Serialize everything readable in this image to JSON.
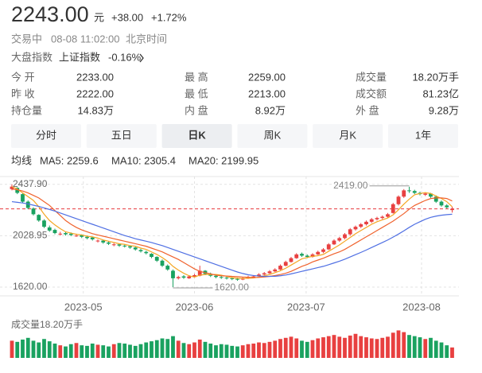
{
  "quote": {
    "price": {
      "value": 2243,
      "label": "2243.00"
    },
    "unit": "元",
    "change": "+38.00",
    "change_pct": "+1.72%",
    "color": "#e8393d"
  },
  "status": {
    "state": "交易中",
    "time": "08-08 11:02:00",
    "zone": "北京时间"
  },
  "index": {
    "label": "大盘指数",
    "name": "上证指数",
    "change": "-0.16%"
  },
  "stats": [
    [
      {
        "label": "今 开",
        "value": "2233.00",
        "color": "#e8393d"
      },
      {
        "label": "最 高",
        "value": "2259.00",
        "color": "#e8393d"
      },
      {
        "label": "成交量",
        "value": "18.20万手"
      }
    ],
    [
      {
        "label": "昨 收",
        "value": "2222.00"
      },
      {
        "label": "最 低",
        "value": "2213.00",
        "color": "#14a04a"
      },
      {
        "label": "成交额",
        "value": "81.23亿"
      }
    ],
    [
      {
        "label": "持仓量",
        "value": "14.83万"
      },
      {
        "label": "内 盘",
        "value": "8.92万"
      },
      {
        "label": "外 盘",
        "value": "9.28万"
      }
    ]
  ],
  "tabs": {
    "items": [
      "分时",
      "五日",
      "日K",
      "周K",
      "月K",
      "1年"
    ],
    "active": 2
  },
  "ma_title": "均线",
  "chart_data": {
    "type": "candlestick",
    "grid": true,
    "up_color": "#e84040",
    "down_color": "#1aa260",
    "ylim": [
      1550,
      2500
    ],
    "yticks": [
      {
        "value": 2437.9,
        "label": "2437.90"
      },
      {
        "value": 2028.95,
        "label": "2028.95"
      },
      {
        "value": 1620,
        "label": "1620.00"
      }
    ],
    "xlim": [
      -2.22,
      83.26
    ],
    "xticks": [
      {
        "value": 13.3,
        "label": "2023-05"
      },
      {
        "value": 34,
        "label": "2023-06"
      },
      {
        "value": 54.8,
        "label": "2023-07"
      },
      {
        "value": 76.3,
        "label": "2023-08"
      }
    ],
    "annotations": [
      {
        "value": 2419,
        "label": "2419.00"
      },
      {
        "value": 1620,
        "label": "1620.00"
      }
    ],
    "candles": [
      [
        2400,
        2437.9,
        2390,
        2420
      ],
      [
        2410,
        2415,
        2360,
        2370
      ],
      [
        2360,
        2365,
        2290,
        2300
      ],
      [
        2300,
        2310,
        2240,
        2250
      ],
      [
        2245,
        2255,
        2190,
        2200
      ],
      [
        2195,
        2200,
        2140,
        2150
      ],
      [
        2150,
        2160,
        2090,
        2100
      ],
      [
        2095,
        2110,
        2060,
        2070
      ],
      [
        2075,
        2085,
        2040,
        2050
      ],
      [
        2040,
        2060,
        2030,
        2045
      ],
      [
        2050,
        2060,
        2030,
        2040
      ],
      [
        2045,
        2055,
        2025,
        2035
      ],
      [
        2030,
        2045,
        2020,
        2030
      ],
      [
        2035,
        2040,
        2010,
        2020
      ],
      [
        2020,
        2030,
        2000,
        2010
      ],
      [
        2015,
        2020,
        1990,
        2000
      ],
      [
        1985,
        2000,
        1975,
        1990
      ],
      [
        1990,
        1995,
        1965,
        1975
      ],
      [
        1975,
        1985,
        1955,
        1965
      ],
      [
        1955,
        1970,
        1945,
        1960
      ],
      [
        1960,
        1965,
        1940,
        1950
      ],
      [
        1950,
        1960,
        1935,
        1945
      ],
      [
        1945,
        1950,
        1925,
        1935
      ],
      [
        1935,
        1940,
        1910,
        1920
      ],
      [
        1915,
        1925,
        1895,
        1905
      ],
      [
        1900,
        1910,
        1880,
        1890
      ],
      [
        1885,
        1890,
        1850,
        1860
      ],
      [
        1860,
        1865,
        1820,
        1830
      ],
      [
        1830,
        1840,
        1780,
        1790
      ],
      [
        1790,
        1800,
        1750,
        1760
      ],
      [
        1750,
        1760,
        1620,
        1690
      ],
      [
        1690,
        1710,
        1680,
        1700
      ],
      [
        1705,
        1715,
        1685,
        1695
      ],
      [
        1690,
        1715,
        1685,
        1705
      ],
      [
        1700,
        1725,
        1695,
        1715
      ],
      [
        1710,
        1790,
        1705,
        1750
      ],
      [
        1750,
        1755,
        1715,
        1725
      ],
      [
        1725,
        1735,
        1700,
        1710
      ],
      [
        1710,
        1720,
        1690,
        1700
      ],
      [
        1700,
        1710,
        1685,
        1695
      ],
      [
        1695,
        1705,
        1680,
        1690
      ],
      [
        1690,
        1700,
        1675,
        1685
      ],
      [
        1685,
        1695,
        1670,
        1680
      ],
      [
        1680,
        1700,
        1675,
        1690
      ],
      [
        1690,
        1710,
        1685,
        1700
      ],
      [
        1700,
        1715,
        1690,
        1705
      ],
      [
        1705,
        1730,
        1700,
        1720
      ],
      [
        1720,
        1740,
        1715,
        1730
      ],
      [
        1730,
        1755,
        1725,
        1745
      ],
      [
        1745,
        1770,
        1740,
        1760
      ],
      [
        1760,
        1800,
        1755,
        1790
      ],
      [
        1790,
        1830,
        1785,
        1820
      ],
      [
        1820,
        1860,
        1815,
        1850
      ],
      [
        1850,
        1890,
        1845,
        1880
      ],
      [
        1885,
        1895,
        1860,
        1870
      ],
      [
        1870,
        1880,
        1850,
        1860
      ],
      [
        1860,
        1890,
        1855,
        1880
      ],
      [
        1880,
        1910,
        1875,
        1900
      ],
      [
        1900,
        1930,
        1890,
        1920
      ],
      [
        1920,
        1970,
        1915,
        1960
      ],
      [
        1960,
        2000,
        1955,
        1990
      ],
      [
        1990,
        2020,
        1980,
        2010
      ],
      [
        2010,
        2050,
        2000,
        2040
      ],
      [
        2040,
        2090,
        2030,
        2080
      ],
      [
        2080,
        2110,
        2070,
        2100
      ],
      [
        2100,
        2130,
        2090,
        2120
      ],
      [
        2120,
        2150,
        2110,
        2140
      ],
      [
        2140,
        2170,
        2130,
        2160
      ],
      [
        2160,
        2180,
        2150,
        2170
      ],
      [
        2170,
        2190,
        2160,
        2180
      ],
      [
        2180,
        2210,
        2170,
        2200
      ],
      [
        2210,
        2290,
        2205,
        2280
      ],
      [
        2280,
        2350,
        2270,
        2340
      ],
      [
        2340,
        2400,
        2330,
        2390
      ],
      [
        2390,
        2419,
        2370,
        2385
      ],
      [
        2385,
        2395,
        2360,
        2370
      ],
      [
        2370,
        2380,
        2350,
        2360
      ],
      [
        2355,
        2375,
        2345,
        2365
      ],
      [
        2365,
        2370,
        2330,
        2340
      ],
      [
        2340,
        2350,
        2290,
        2300
      ],
      [
        2300,
        2310,
        2260,
        2270
      ],
      [
        2270,
        2280,
        2245,
        2255
      ],
      [
        2233,
        2259,
        2213,
        2243
      ]
    ],
    "series": [
      {
        "label": "MA5: 2259.6",
        "color": "#f5a623",
        "values": [
          2420,
          2400,
          2370,
          2340,
          2310,
          2260,
          2200,
          2150,
          2115,
          2085,
          2060,
          2050,
          2040,
          2035,
          2025,
          2020,
          2010,
          1995,
          1985,
          1975,
          1965,
          1960,
          1950,
          1945,
          1930,
          1920,
          1900,
          1880,
          1855,
          1825,
          1785,
          1755,
          1730,
          1710,
          1700,
          1715,
          1720,
          1720,
          1720,
          1715,
          1705,
          1695,
          1690,
          1688,
          1690,
          1692,
          1700,
          1710,
          1720,
          1735,
          1750,
          1770,
          1795,
          1820,
          1845,
          1855,
          1865,
          1870,
          1880,
          1905,
          1930,
          1955,
          1985,
          2015,
          2045,
          2070,
          2095,
          2120,
          2140,
          2155,
          2170,
          2195,
          2235,
          2280,
          2320,
          2355,
          2365,
          2372,
          2365,
          2345,
          2325,
          2300,
          2259.6
        ]
      },
      {
        "label": "MA10: 2305.4",
        "color": "#f0622d",
        "values": [
          2400,
          2395,
          2385,
          2370,
          2350,
          2330,
          2300,
          2270,
          2230,
          2190,
          2150,
          2120,
          2095,
          2075,
          2060,
          2045,
          2035,
          2025,
          2015,
          2005,
          1995,
          1985,
          1975,
          1965,
          1955,
          1945,
          1930,
          1915,
          1900,
          1880,
          1860,
          1840,
          1815,
          1790,
          1765,
          1745,
          1735,
          1725,
          1715,
          1710,
          1708,
          1705,
          1703,
          1700,
          1698,
          1696,
          1697,
          1700,
          1705,
          1712,
          1720,
          1730,
          1745,
          1765,
          1785,
          1800,
          1820,
          1835,
          1850,
          1868,
          1885,
          1900,
          1920,
          1945,
          1970,
          1995,
          2020,
          2045,
          2070,
          2095,
          2120,
          2145,
          2175,
          2205,
          2240,
          2270,
          2290,
          2310,
          2325,
          2330,
          2330,
          2325,
          2305.4
        ]
      },
      {
        "label": "MA20: 2199.95",
        "color": "#4f6fe3",
        "values": [
          2300,
          2295,
          2290,
          2282,
          2272,
          2262,
          2250,
          2238,
          2225,
          2210,
          2195,
          2180,
          2165,
          2150,
          2135,
          2120,
          2105,
          2090,
          2075,
          2060,
          2045,
          2030,
          2018,
          2005,
          1995,
          1985,
          1975,
          1962,
          1950,
          1935,
          1920,
          1905,
          1890,
          1875,
          1860,
          1845,
          1830,
          1815,
          1800,
          1785,
          1770,
          1755,
          1740,
          1728,
          1718,
          1712,
          1708,
          1705,
          1705,
          1706,
          1710,
          1716,
          1725,
          1735,
          1745,
          1755,
          1765,
          1775,
          1785,
          1798,
          1812,
          1826,
          1842,
          1860,
          1878,
          1896,
          1915,
          1935,
          1955,
          1975,
          1995,
          2018,
          2042,
          2068,
          2095,
          2120,
          2140,
          2160,
          2175,
          2185,
          2192,
          2197,
          2199.95
        ]
      }
    ],
    "volume": {
      "title": "成交量18.20万手",
      "ylim": [
        0,
        50
      ],
      "values": [
        30,
        28,
        32,
        35,
        30,
        27,
        33,
        29,
        25,
        22,
        20,
        24,
        26,
        22,
        21,
        25,
        23,
        22,
        20,
        24,
        26,
        25,
        23,
        21,
        24,
        27,
        29,
        31,
        34,
        33,
        38,
        30,
        26,
        24,
        27,
        32,
        28,
        25,
        22,
        24,
        23,
        21,
        20,
        22,
        24,
        25,
        27,
        26,
        28,
        30,
        33,
        35,
        37,
        34,
        30,
        28,
        31,
        34,
        36,
        38,
        40,
        37,
        35,
        39,
        42,
        38,
        36,
        34,
        33,
        35,
        37,
        44,
        48,
        45,
        40,
        38,
        36,
        33,
        35,
        30,
        27,
        22,
        18.2
      ]
    }
  }
}
